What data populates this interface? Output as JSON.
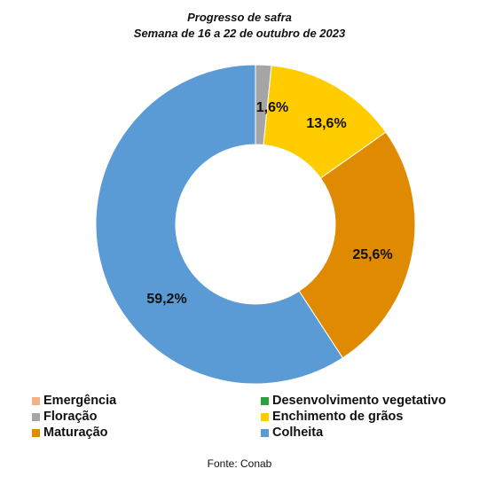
{
  "chart_data": {
    "type": "pie",
    "donut": true,
    "title": "Progresso de safra",
    "subtitle": "Semana de 16 a 22 de outubro de 2023",
    "categories": [
      "Emergência",
      "Desenvolvimento vegetativo",
      "Floração",
      "Enchimento de grãos",
      "Maturação",
      "Colheita"
    ],
    "values": [
      0,
      0,
      1.6,
      13.6,
      25.6,
      59.2
    ],
    "data_labels": [
      "",
      "",
      "1,6%",
      "13,6%",
      "25,6%",
      "59,2%"
    ],
    "colors": [
      "#F4B183",
      "#2E9E3F",
      "#A5A5A5",
      "#FFCC00",
      "#DF8A00",
      "#5B9BD5"
    ],
    "legend": "bottom",
    "source": "Fonte: Conab"
  }
}
